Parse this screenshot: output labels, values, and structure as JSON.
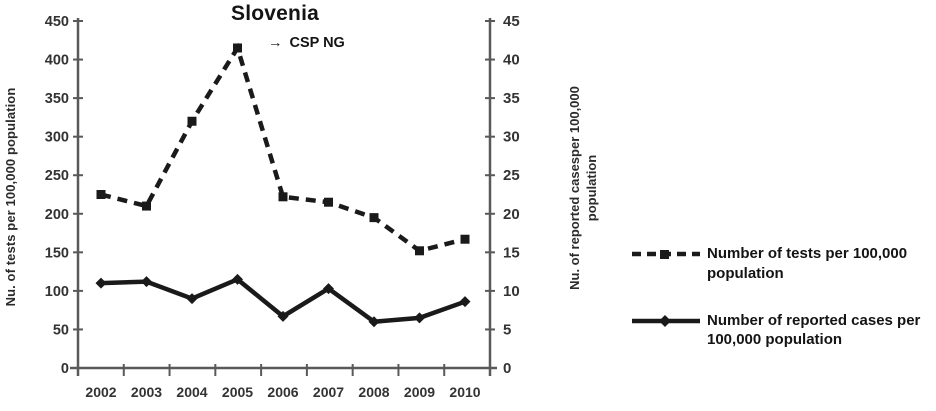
{
  "colors": {
    "background": "#ffffff",
    "axis": "#595959",
    "series": "#1a1a1a",
    "tick_text": "#333333"
  },
  "chart_data": {
    "type": "line",
    "title": "Slovenia",
    "annotation": {
      "icon": "→",
      "text": "CSP NG"
    },
    "x": [
      "2002",
      "2003",
      "2004",
      "2005",
      "2006",
      "2007",
      "2008",
      "2009",
      "2010"
    ],
    "xlabel": "",
    "left_axis": {
      "label": "Nu. of tests per 100,000 population",
      "min": 0,
      "max": 450,
      "step": 50,
      "ticks": [
        0,
        50,
        100,
        150,
        200,
        250,
        300,
        350,
        400,
        450
      ]
    },
    "right_axis": {
      "label": "Nu. of reported casesper 100,000 population",
      "min": 0,
      "max": 45,
      "step": 5,
      "ticks": [
        0,
        5,
        10,
        15,
        20,
        25,
        30,
        35,
        40,
        45
      ]
    },
    "series": [
      {
        "name": "Number of tests per 100,000 population",
        "axis": "left",
        "line_style": "dashed",
        "marker": "square",
        "values": [
          225,
          210,
          320,
          415,
          222,
          215,
          195,
          152,
          167
        ]
      },
      {
        "name": "Number of reported cases per 100,000 population",
        "axis": "right",
        "line_style": "solid",
        "marker": "diamond",
        "values": [
          11,
          11.2,
          9,
          11.5,
          6.7,
          10.3,
          6,
          6.5,
          8.6
        ]
      }
    ],
    "legend_position": "right",
    "grid": false
  }
}
